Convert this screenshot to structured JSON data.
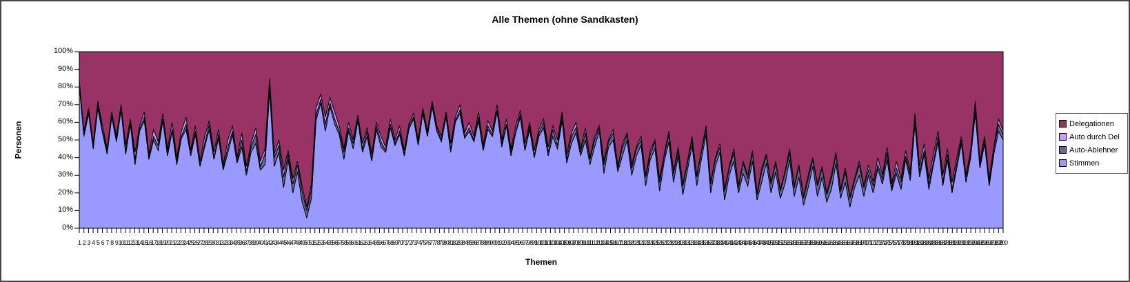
{
  "chart": {
    "title": "Alle Themen (ohne Sandkasten)",
    "y_axis": {
      "label": "Personen",
      "ticks": [
        "100%",
        "90%",
        "80%",
        "70%",
        "60%",
        "50%",
        "40%",
        "30%",
        "20%",
        "10%",
        "0%"
      ]
    },
    "x_axis": {
      "label": "Themen"
    },
    "legend": {
      "position": "right",
      "items": [
        {
          "label": "Delegationen",
          "color": "#993366"
        },
        {
          "label": "Auto durch Del",
          "color": "#CC99FF"
        },
        {
          "label": "Auto-Ablehner",
          "color": "#666699"
        },
        {
          "label": "Stimmen",
          "color": "#9999FF"
        }
      ]
    }
  },
  "chart_data": {
    "type": "area",
    "stacking": "percent",
    "title": "Alle Themen (ohne Sandkasten)",
    "xlabel": "Themen",
    "ylabel": "Personen",
    "ylim": [
      0,
      100
    ],
    "grid": false,
    "legend_position": "right",
    "outline_color": "#000000",
    "categories": [
      1,
      2,
      3,
      4,
      5,
      6,
      7,
      8,
      9,
      10,
      11,
      12,
      13,
      14,
      15,
      16,
      17,
      18,
      19,
      20,
      21,
      22,
      23,
      24,
      25,
      26,
      27,
      28,
      29,
      30,
      31,
      32,
      33,
      34,
      35,
      36,
      37,
      38,
      39,
      40,
      41,
      42,
      43,
      44,
      45,
      46,
      47,
      48,
      49,
      50,
      51,
      52,
      53,
      54,
      55,
      56,
      57,
      58,
      59,
      60,
      61,
      62,
      63,
      64,
      65,
      66,
      67,
      68,
      69,
      70,
      71,
      72,
      73,
      74,
      75,
      76,
      77,
      78,
      79,
      80,
      81,
      82,
      83,
      84,
      85,
      86,
      87,
      88,
      89,
      90,
      91,
      92,
      93,
      94,
      95,
      96,
      97,
      98,
      99,
      100,
      101,
      102,
      103,
      104,
      105,
      106,
      107,
      108,
      109,
      110,
      111,
      112,
      113,
      114,
      115,
      116,
      117,
      118,
      119,
      120,
      121,
      122,
      123,
      124,
      125,
      126,
      127,
      128,
      129,
      130,
      131,
      132,
      133,
      134,
      135,
      136,
      137,
      138,
      139,
      140,
      141,
      142,
      143,
      144,
      145,
      146,
      147,
      148,
      149,
      150,
      151,
      152,
      153,
      154,
      155,
      156,
      157,
      158,
      159,
      160,
      161,
      162,
      163,
      164,
      165,
      166,
      167,
      168,
      169,
      170,
      171,
      172,
      173,
      174,
      175,
      176,
      177,
      178,
      179,
      180,
      181,
      182,
      183,
      184,
      185,
      186,
      187,
      188,
      189,
      190,
      191,
      192,
      193,
      194,
      195,
      196,
      197,
      198,
      199,
      200
    ],
    "series": [
      {
        "name": "Stimmen",
        "color": "#9999FF",
        "values": [
          81,
          52,
          65,
          45,
          68,
          54,
          42,
          63,
          49,
          67,
          42,
          59,
          36,
          55,
          61,
          39,
          50,
          44,
          61,
          41,
          55,
          36,
          51,
          56,
          41,
          53,
          35,
          46,
          56,
          39,
          51,
          33,
          43,
          53,
          37,
          46,
          30,
          43,
          48,
          33,
          36,
          78,
          35,
          43,
          23,
          39,
          20,
          32,
          15,
          6,
          17,
          61,
          71,
          55,
          69,
          59,
          53,
          39,
          55,
          45,
          61,
          43,
          52,
          38,
          56,
          46,
          43,
          57,
          47,
          53,
          41,
          56,
          62,
          47,
          65,
          52,
          69,
          55,
          49,
          63,
          43,
          60,
          65,
          51,
          55,
          49,
          61,
          44,
          56,
          52,
          66,
          46,
          58,
          41,
          54,
          63,
          44,
          56,
          40,
          52,
          57,
          41,
          52,
          45,
          61,
          37,
          48,
          54,
          41,
          50,
          36,
          46,
          55,
          31,
          46,
          50,
          32,
          41,
          50,
          30,
          41,
          47,
          24,
          39,
          45,
          21,
          38,
          49,
          26,
          41,
          19,
          33,
          47,
          24,
          39,
          53,
          20,
          35,
          43,
          16,
          30,
          38,
          20,
          31,
          24,
          38,
          16,
          26,
          37,
          20,
          32,
          17,
          25,
          39,
          18,
          29,
          13,
          23,
          35,
          18,
          29,
          15,
          22,
          37,
          17,
          26,
          12,
          23,
          30,
          18,
          30,
          20,
          34,
          25,
          39,
          21,
          31,
          22,
          39,
          27,
          59,
          29,
          42,
          22,
          36,
          49,
          24,
          39,
          20,
          34,
          48,
          26,
          40,
          65,
          34,
          48,
          24,
          42,
          55,
          50
        ]
      },
      {
        "name": "Auto-Ablehner",
        "color": "#666699",
        "values": [
          2,
          1,
          2,
          1,
          3,
          1,
          2,
          1,
          2,
          1,
          2,
          1,
          3,
          1,
          2,
          1,
          2,
          3,
          1,
          2,
          1,
          2,
          1,
          3,
          1,
          2,
          1,
          2,
          3,
          1,
          2,
          1,
          3,
          2,
          1,
          4,
          2,
          3,
          5,
          2,
          6,
          3,
          5,
          4,
          6,
          3,
          5,
          4,
          6,
          4,
          5,
          3,
          2,
          4,
          2,
          3,
          2,
          4,
          2,
          3,
          1,
          2,
          3,
          1,
          2,
          3,
          1,
          2,
          1,
          2,
          1,
          2,
          1,
          2,
          1,
          2,
          1,
          2,
          1,
          2,
          2,
          1,
          2,
          1,
          2,
          1,
          2,
          1,
          2,
          1,
          1,
          2,
          1,
          2,
          1,
          2,
          1,
          2,
          1,
          2,
          3,
          2,
          4,
          2,
          3,
          2,
          4,
          3,
          2,
          4,
          3,
          4,
          2,
          5,
          3,
          4,
          2,
          5,
          3,
          4,
          4,
          3,
          5,
          3,
          4,
          5,
          3,
          4,
          5,
          3,
          5,
          4,
          3,
          5,
          4,
          3,
          5,
          4,
          3,
          5,
          4,
          5,
          3,
          6,
          4,
          5,
          3,
          6,
          4,
          5,
          5,
          4,
          6,
          4,
          5,
          6,
          4,
          5,
          4,
          6,
          5,
          4,
          6,
          5,
          4,
          6,
          5,
          4,
          6,
          5,
          3,
          4,
          2,
          3,
          4,
          2,
          3,
          4,
          2,
          3,
          2,
          3,
          2,
          3,
          2,
          3,
          2,
          3,
          2,
          3,
          2,
          3,
          2,
          4,
          2,
          3,
          2,
          3,
          4,
          3
        ]
      },
      {
        "name": "Auto durch Del",
        "color": "#CC99FF",
        "values": [
          1,
          2,
          1,
          2,
          1,
          3,
          1,
          2,
          1,
          2,
          3,
          2,
          4,
          2,
          3,
          2,
          4,
          2,
          3,
          2,
          4,
          2,
          3,
          4,
          2,
          3,
          2,
          4,
          2,
          3,
          3,
          2,
          4,
          3,
          2,
          4,
          3,
          2,
          4,
          3,
          3,
          4,
          2,
          3,
          4,
          2,
          3,
          2,
          3,
          2,
          3,
          4,
          3,
          4,
          3,
          4,
          3,
          2,
          3,
          2,
          2,
          3,
          2,
          3,
          2,
          3,
          2,
          3,
          2,
          3,
          2,
          1,
          2,
          1,
          2,
          1,
          2,
          1,
          2,
          1,
          3,
          2,
          3,
          2,
          3,
          2,
          3,
          2,
          3,
          2,
          3,
          2,
          3,
          2,
          3,
          2,
          3,
          2,
          3,
          2,
          2,
          3,
          2,
          3,
          2,
          3,
          2,
          3,
          2,
          3,
          1,
          2,
          1,
          2,
          1,
          2,
          1,
          2,
          1,
          2,
          1,
          2,
          1,
          2,
          1,
          2,
          1,
          2,
          1,
          2,
          1,
          1,
          2,
          1,
          1,
          2,
          1,
          1,
          2,
          1,
          1,
          2,
          1,
          1,
          2,
          1,
          1,
          2,
          1,
          1,
          1,
          1,
          1,
          2,
          1,
          1,
          1,
          2,
          1,
          1,
          1,
          1,
          2,
          1,
          1,
          2,
          1,
          1,
          2,
          1,
          3,
          2,
          4,
          2,
          3,
          2,
          4,
          2,
          3,
          2,
          4,
          3,
          4,
          3,
          4,
          3,
          4,
          3,
          4,
          3,
          2,
          1,
          2,
          3,
          2,
          1,
          2,
          1,
          3,
          2
        ]
      },
      {
        "name": "Delegationen",
        "color": "#993366",
        "values": [
          16,
          45,
          32,
          52,
          28,
          42,
          55,
          34,
          48,
          30,
          53,
          38,
          57,
          42,
          34,
          58,
          44,
          51,
          35,
          55,
          40,
          60,
          45,
          37,
          56,
          42,
          62,
          48,
          39,
          57,
          44,
          64,
          50,
          42,
          60,
          46,
          65,
          52,
          43,
          62,
          55,
          15,
          58,
          50,
          67,
          56,
          72,
          62,
          76,
          88,
          75,
          32,
          24,
          37,
          26,
          34,
          42,
          55,
          40,
          50,
          36,
          52,
          43,
          58,
          40,
          48,
          54,
          38,
          50,
          42,
          56,
          41,
          35,
          50,
          32,
          45,
          28,
          42,
          48,
          34,
          52,
          37,
          30,
          46,
          40,
          48,
          34,
          53,
          39,
          45,
          30,
          50,
          38,
          55,
          42,
          33,
          52,
          40,
          56,
          44,
          38,
          54,
          42,
          50,
          34,
          58,
          46,
          40,
          55,
          43,
          60,
          48,
          42,
          62,
          50,
          44,
          65,
          52,
          46,
          64,
          54,
          48,
          70,
          56,
          50,
          72,
          58,
          45,
          68,
          54,
          75,
          62,
          48,
          70,
          56,
          42,
          74,
          60,
          52,
          78,
          65,
          55,
          76,
          62,
          70,
          56,
          80,
          66,
          58,
          74,
          62,
          78,
          68,
          55,
          76,
          64,
          82,
          70,
          60,
          75,
          65,
          80,
          70,
          57,
          78,
          66,
          82,
          72,
          62,
          76,
          64,
          74,
          60,
          70,
          54,
          75,
          62,
          72,
          56,
          68,
          35,
          65,
          52,
          72,
          58,
          45,
          70,
          55,
          74,
          60,
          48,
          70,
          56,
          28,
          62,
          48,
          72,
          54,
          38,
          45
        ]
      }
    ]
  }
}
